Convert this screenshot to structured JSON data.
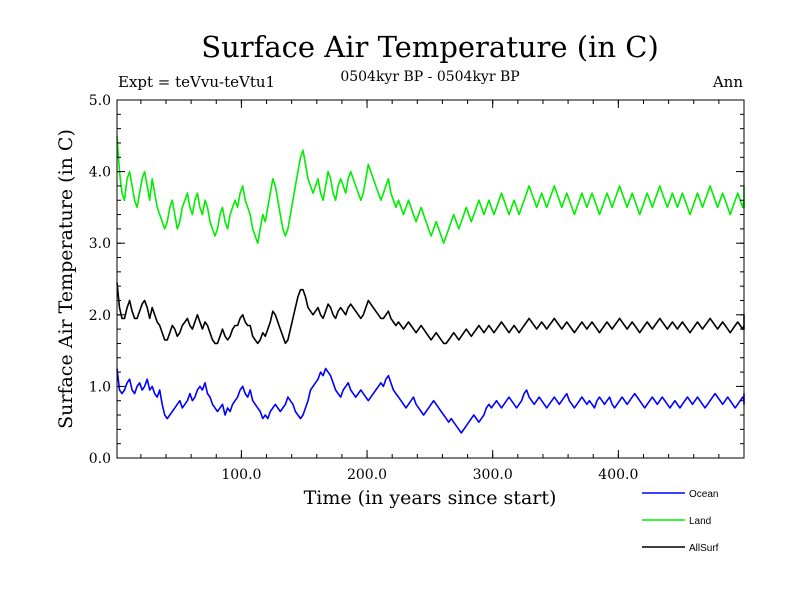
{
  "chart_data": {
    "type": "line",
    "title": "Surface Air Temperature (in C)",
    "subtitle": "0504kyr BP - 0504kyr BP",
    "expt_label": "Expt = teVvu-teVtu1",
    "season_label": "Ann",
    "xlabel": "Time (in years since start)",
    "ylabel": "Surface Air Temperature (in C)",
    "xlim": [
      1,
      500
    ],
    "ylim": [
      0.0,
      5.0
    ],
    "x_ticks": [
      100,
      200,
      300,
      400
    ],
    "x_tick_labels": [
      "100.0",
      "200.0",
      "300.0",
      "400.0"
    ],
    "y_ticks": [
      0,
      1,
      2,
      3,
      4,
      5
    ],
    "y_tick_labels": [
      "0.0",
      "1.0",
      "2.0",
      "3.0",
      "4.0",
      "5.0"
    ],
    "x_step": 2,
    "series": [
      {
        "name": "Ocean",
        "color": "#0000ff",
        "values": [
          1.25,
          0.95,
          0.9,
          0.95,
          1.05,
          1.1,
          0.95,
          0.9,
          1.0,
          1.05,
          0.95,
          1.0,
          1.1,
          0.95,
          1.0,
          0.9,
          0.85,
          0.95,
          0.75,
          0.6,
          0.55,
          0.6,
          0.65,
          0.7,
          0.75,
          0.8,
          0.7,
          0.75,
          0.8,
          0.9,
          0.8,
          0.85,
          0.95,
          1.0,
          0.95,
          1.05,
          0.9,
          0.85,
          0.75,
          0.7,
          0.65,
          0.7,
          0.75,
          0.6,
          0.7,
          0.65,
          0.75,
          0.8,
          0.85,
          0.95,
          1.0,
          0.9,
          0.85,
          0.95,
          0.8,
          0.75,
          0.7,
          0.65,
          0.55,
          0.6,
          0.55,
          0.65,
          0.7,
          0.75,
          0.7,
          0.65,
          0.7,
          0.75,
          0.85,
          0.8,
          0.75,
          0.65,
          0.6,
          0.55,
          0.6,
          0.7,
          0.8,
          0.95,
          1.0,
          1.05,
          1.1,
          1.2,
          1.15,
          1.25,
          1.2,
          1.15,
          1.05,
          0.95,
          0.9,
          0.85,
          0.95,
          1.0,
          1.05,
          0.95,
          0.9,
          0.85,
          0.9,
          0.95,
          0.9,
          0.85,
          0.8,
          0.85,
          0.9,
          0.95,
          1.0,
          1.05,
          1.0,
          1.1,
          1.15,
          1.05,
          0.95,
          0.9,
          0.85,
          0.8,
          0.75,
          0.7,
          0.75,
          0.8,
          0.85,
          0.75,
          0.7,
          0.65,
          0.6,
          0.65,
          0.7,
          0.75,
          0.8,
          0.75,
          0.7,
          0.65,
          0.6,
          0.55,
          0.5,
          0.55,
          0.5,
          0.45,
          0.4,
          0.35,
          0.4,
          0.45,
          0.5,
          0.55,
          0.6,
          0.55,
          0.5,
          0.55,
          0.6,
          0.7,
          0.75,
          0.7,
          0.75,
          0.8,
          0.75,
          0.7,
          0.75,
          0.8,
          0.85,
          0.8,
          0.75,
          0.7,
          0.75,
          0.8,
          0.9,
          0.95,
          0.85,
          0.8,
          0.75,
          0.8,
          0.85,
          0.8,
          0.75,
          0.7,
          0.75,
          0.8,
          0.85,
          0.8,
          0.75,
          0.8,
          0.85,
          0.9,
          0.8,
          0.75,
          0.7,
          0.75,
          0.8,
          0.85,
          0.8,
          0.75,
          0.8,
          0.75,
          0.7,
          0.8,
          0.85,
          0.8,
          0.75,
          0.8,
          0.85,
          0.75,
          0.7,
          0.75,
          0.8,
          0.85,
          0.8,
          0.75,
          0.8,
          0.85,
          0.9,
          0.85,
          0.8,
          0.75,
          0.7,
          0.75,
          0.8,
          0.85,
          0.8,
          0.75,
          0.8,
          0.85,
          0.8,
          0.75,
          0.7,
          0.75,
          0.8,
          0.75,
          0.7,
          0.75,
          0.8,
          0.85,
          0.8,
          0.75,
          0.8,
          0.85,
          0.8,
          0.75,
          0.7,
          0.75,
          0.8,
          0.85,
          0.9,
          0.85,
          0.8,
          0.75,
          0.8,
          0.85,
          0.8,
          0.75,
          0.7,
          0.75,
          0.8,
          0.85,
          0.8,
          0.75,
          0.8,
          0.85,
          0.9,
          0.85,
          0.8,
          0.75,
          0.85,
          0.9
        ]
      },
      {
        "name": "Land",
        "color": "#00ee00",
        "values": [
          4.5,
          4.0,
          3.7,
          3.6,
          3.9,
          4.0,
          3.8,
          3.6,
          3.5,
          3.7,
          3.9,
          4.0,
          3.8,
          3.6,
          3.9,
          3.7,
          3.5,
          3.4,
          3.3,
          3.2,
          3.3,
          3.5,
          3.6,
          3.4,
          3.2,
          3.3,
          3.5,
          3.6,
          3.7,
          3.5,
          3.4,
          3.6,
          3.7,
          3.5,
          3.4,
          3.6,
          3.5,
          3.3,
          3.2,
          3.1,
          3.2,
          3.4,
          3.5,
          3.3,
          3.2,
          3.4,
          3.5,
          3.6,
          3.5,
          3.7,
          3.8,
          3.6,
          3.5,
          3.4,
          3.2,
          3.1,
          3.0,
          3.2,
          3.4,
          3.3,
          3.5,
          3.7,
          3.9,
          3.8,
          3.6,
          3.4,
          3.2,
          3.1,
          3.2,
          3.4,
          3.6,
          3.8,
          4.0,
          4.2,
          4.3,
          4.1,
          3.9,
          3.8,
          3.7,
          3.8,
          3.9,
          3.7,
          3.6,
          3.8,
          4.0,
          3.9,
          3.7,
          3.6,
          3.8,
          3.9,
          3.8,
          3.7,
          3.9,
          4.0,
          3.9,
          3.8,
          3.7,
          3.6,
          3.7,
          3.9,
          4.1,
          4.0,
          3.9,
          3.8,
          3.7,
          3.6,
          3.7,
          3.8,
          3.9,
          3.7,
          3.6,
          3.5,
          3.6,
          3.5,
          3.4,
          3.5,
          3.6,
          3.5,
          3.4,
          3.3,
          3.4,
          3.5,
          3.4,
          3.3,
          3.2,
          3.1,
          3.2,
          3.3,
          3.2,
          3.1,
          3.0,
          3.1,
          3.2,
          3.3,
          3.4,
          3.3,
          3.2,
          3.3,
          3.4,
          3.5,
          3.4,
          3.3,
          3.4,
          3.5,
          3.6,
          3.5,
          3.4,
          3.5,
          3.6,
          3.5,
          3.4,
          3.5,
          3.6,
          3.7,
          3.6,
          3.5,
          3.4,
          3.5,
          3.6,
          3.5,
          3.4,
          3.5,
          3.6,
          3.7,
          3.8,
          3.7,
          3.6,
          3.5,
          3.6,
          3.7,
          3.6,
          3.5,
          3.6,
          3.7,
          3.8,
          3.7,
          3.6,
          3.5,
          3.6,
          3.7,
          3.6,
          3.5,
          3.4,
          3.5,
          3.6,
          3.7,
          3.6,
          3.5,
          3.6,
          3.7,
          3.6,
          3.5,
          3.4,
          3.5,
          3.6,
          3.7,
          3.6,
          3.5,
          3.6,
          3.7,
          3.8,
          3.7,
          3.6,
          3.5,
          3.6,
          3.7,
          3.6,
          3.5,
          3.4,
          3.5,
          3.6,
          3.7,
          3.6,
          3.5,
          3.6,
          3.7,
          3.8,
          3.7,
          3.6,
          3.5,
          3.6,
          3.7,
          3.6,
          3.5,
          3.6,
          3.7,
          3.6,
          3.5,
          3.4,
          3.5,
          3.6,
          3.7,
          3.6,
          3.5,
          3.6,
          3.7,
          3.8,
          3.7,
          3.6,
          3.5,
          3.6,
          3.7,
          3.6,
          3.5,
          3.4,
          3.5,
          3.6,
          3.7,
          3.6,
          3.5,
          3.6,
          3.7,
          3.8,
          3.7,
          3.6,
          3.5,
          3.6,
          3.7,
          3.8,
          3.6
        ]
      },
      {
        "name": "AllSurf",
        "color": "#000000",
        "values": [
          2.45,
          2.1,
          1.95,
          1.95,
          2.1,
          2.2,
          2.05,
          1.95,
          1.95,
          2.05,
          2.15,
          2.2,
          2.1,
          1.95,
          2.1,
          2.0,
          1.9,
          1.85,
          1.75,
          1.65,
          1.65,
          1.75,
          1.85,
          1.8,
          1.7,
          1.75,
          1.85,
          1.9,
          1.95,
          1.85,
          1.8,
          1.9,
          2.0,
          1.9,
          1.8,
          1.9,
          1.85,
          1.75,
          1.65,
          1.6,
          1.6,
          1.7,
          1.8,
          1.7,
          1.65,
          1.7,
          1.8,
          1.85,
          1.85,
          1.95,
          2.0,
          1.9,
          1.85,
          1.85,
          1.7,
          1.65,
          1.6,
          1.65,
          1.75,
          1.7,
          1.8,
          1.9,
          2.05,
          2.0,
          1.9,
          1.8,
          1.7,
          1.6,
          1.65,
          1.8,
          1.95,
          2.1,
          2.25,
          2.35,
          2.35,
          2.25,
          2.1,
          2.05,
          2.0,
          2.05,
          2.1,
          2.0,
          1.95,
          2.05,
          2.15,
          2.1,
          2.0,
          1.95,
          2.05,
          2.1,
          2.05,
          2.0,
          2.1,
          2.15,
          2.1,
          2.05,
          2.0,
          1.95,
          2.0,
          2.1,
          2.2,
          2.15,
          2.1,
          2.05,
          2.0,
          1.95,
          1.95,
          2.0,
          2.05,
          1.95,
          1.9,
          1.85,
          1.9,
          1.85,
          1.8,
          1.85,
          1.9,
          1.85,
          1.8,
          1.75,
          1.8,
          1.85,
          1.8,
          1.75,
          1.7,
          1.65,
          1.7,
          1.75,
          1.7,
          1.65,
          1.6,
          1.6,
          1.65,
          1.7,
          1.75,
          1.7,
          1.65,
          1.7,
          1.75,
          1.8,
          1.75,
          1.7,
          1.75,
          1.8,
          1.85,
          1.8,
          1.75,
          1.8,
          1.85,
          1.8,
          1.75,
          1.8,
          1.85,
          1.9,
          1.85,
          1.8,
          1.75,
          1.8,
          1.85,
          1.8,
          1.75,
          1.8,
          1.85,
          1.9,
          1.95,
          1.9,
          1.85,
          1.8,
          1.85,
          1.9,
          1.85,
          1.8,
          1.85,
          1.9,
          1.95,
          1.9,
          1.85,
          1.8,
          1.85,
          1.9,
          1.85,
          1.8,
          1.75,
          1.8,
          1.85,
          1.9,
          1.85,
          1.8,
          1.85,
          1.9,
          1.85,
          1.8,
          1.75,
          1.8,
          1.85,
          1.9,
          1.85,
          1.8,
          1.85,
          1.9,
          1.95,
          1.9,
          1.85,
          1.8,
          1.85,
          1.9,
          1.85,
          1.8,
          1.75,
          1.8,
          1.85,
          1.9,
          1.85,
          1.8,
          1.85,
          1.9,
          1.95,
          1.9,
          1.85,
          1.8,
          1.85,
          1.9,
          1.85,
          1.8,
          1.85,
          1.9,
          1.85,
          1.8,
          1.75,
          1.8,
          1.85,
          1.9,
          1.85,
          1.8,
          1.85,
          1.9,
          1.95,
          1.9,
          1.85,
          1.8,
          1.85,
          1.9,
          1.85,
          1.8,
          1.75,
          1.8,
          1.85,
          1.9,
          1.85,
          1.8,
          1.85,
          1.9,
          1.95,
          1.9,
          1.85,
          1.8,
          1.85,
          1.9,
          2.0,
          1.9
        ]
      }
    ]
  }
}
